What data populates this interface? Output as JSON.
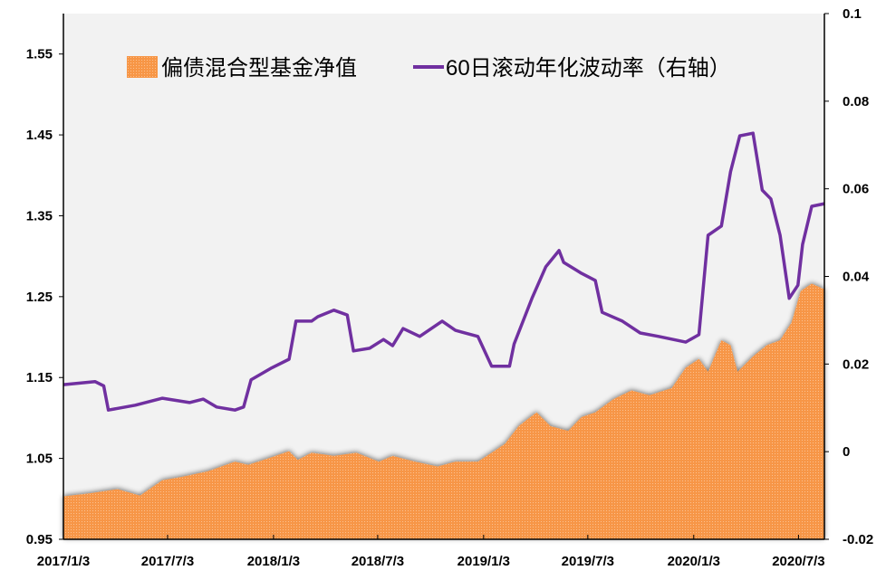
{
  "chart_data": {
    "type": "area+line",
    "title": "",
    "xlabel": "",
    "ylabel": "",
    "y2label": "",
    "xlim": [
      "2017-01-03",
      "2020-08-17"
    ],
    "ylim": [
      0.95,
      1.6
    ],
    "y2lim": [
      -0.02,
      0.1
    ],
    "grid": false,
    "legend_placement": "top",
    "x_ticks": [
      "2017/1/3",
      "2017/7/3",
      "2018/1/3",
      "2018/7/3",
      "2019/1/3",
      "2019/7/3",
      "2020/1/3",
      "2020/7/3"
    ],
    "x_tick_dates": [
      "2017-01-03",
      "2017-07-03",
      "2018-01-03",
      "2018-07-03",
      "2019-01-03",
      "2019-07-03",
      "2020-01-03",
      "2020-07-03"
    ],
    "y_ticks": [
      "0.95",
      "1.05",
      "1.15",
      "1.25",
      "1.35",
      "1.45",
      "1.55"
    ],
    "y2_ticks": [
      "-0.02",
      "0",
      "0.02",
      "0.04",
      "0.06",
      "0.08",
      "0.1"
    ],
    "colors": {
      "area": "#f79646",
      "line": "#7030a0",
      "plot_bg": "#f2f2f2"
    },
    "series": [
      {
        "name": "偏债混合型基金净值",
        "type": "area",
        "axis": "left",
        "points": [
          [
            "2017-01-03",
            1.003
          ],
          [
            "2017-02-19",
            1.007
          ],
          [
            "2017-04-07",
            1.012
          ],
          [
            "2017-05-16",
            1.004
          ],
          [
            "2017-06-24",
            1.023
          ],
          [
            "2017-07-26",
            1.027
          ],
          [
            "2017-09-11",
            1.034
          ],
          [
            "2017-10-28",
            1.046
          ],
          [
            "2017-11-20",
            1.042
          ],
          [
            "2017-12-29",
            1.051
          ],
          [
            "2018-01-30",
            1.059
          ],
          [
            "2018-02-14",
            1.048
          ],
          [
            "2018-03-10",
            1.057
          ],
          [
            "2018-04-18",
            1.053
          ],
          [
            "2018-05-27",
            1.057
          ],
          [
            "2018-07-05",
            1.046
          ],
          [
            "2018-07-29",
            1.053
          ],
          [
            "2018-09-06",
            1.046
          ],
          [
            "2018-10-15",
            1.04
          ],
          [
            "2018-11-15",
            1.046
          ],
          [
            "2018-12-24",
            1.046
          ],
          [
            "2019-01-17",
            1.057
          ],
          [
            "2019-02-09",
            1.068
          ],
          [
            "2019-03-05",
            1.09
          ],
          [
            "2019-04-05",
            1.107
          ],
          [
            "2019-04-29",
            1.09
          ],
          [
            "2019-05-30",
            1.084
          ],
          [
            "2019-06-22",
            1.101
          ],
          [
            "2019-07-16",
            1.107
          ],
          [
            "2019-08-16",
            1.123
          ],
          [
            "2019-09-17",
            1.134
          ],
          [
            "2019-10-18",
            1.128
          ],
          [
            "2019-11-26",
            1.137
          ],
          [
            "2019-12-20",
            1.162
          ],
          [
            "2020-01-12",
            1.173
          ],
          [
            "2020-01-28",
            1.157
          ],
          [
            "2020-02-20",
            1.196
          ],
          [
            "2020-03-07",
            1.19
          ],
          [
            "2020-03-19",
            1.157
          ],
          [
            "2020-04-15",
            1.176
          ],
          [
            "2020-05-09",
            1.19
          ],
          [
            "2020-06-01",
            1.196
          ],
          [
            "2020-06-21",
            1.218
          ],
          [
            "2020-07-07",
            1.257
          ],
          [
            "2020-07-26",
            1.266
          ],
          [
            "2020-08-17",
            1.259
          ]
        ]
      },
      {
        "name": "60日滚动年化波动率（右轴）",
        "type": "line",
        "axis": "right",
        "points": [
          [
            "2017-01-03",
            0.0153
          ],
          [
            "2017-02-27",
            0.016
          ],
          [
            "2017-03-14",
            0.015
          ],
          [
            "2017-03-22",
            0.0095
          ],
          [
            "2017-05-08",
            0.0106
          ],
          [
            "2017-06-24",
            0.0122
          ],
          [
            "2017-08-10",
            0.0112
          ],
          [
            "2017-09-03",
            0.012
          ],
          [
            "2017-09-26",
            0.0102
          ],
          [
            "2017-10-28",
            0.0095
          ],
          [
            "2017-11-12",
            0.0102
          ],
          [
            "2017-11-25",
            0.0164
          ],
          [
            "2017-12-29",
            0.019
          ],
          [
            "2018-01-30",
            0.0211
          ],
          [
            "2018-02-11",
            0.0298
          ],
          [
            "2018-03-10",
            0.0298
          ],
          [
            "2018-03-21",
            0.0308
          ],
          [
            "2018-04-18",
            0.0323
          ],
          [
            "2018-05-11",
            0.0312
          ],
          [
            "2018-05-22",
            0.023
          ],
          [
            "2018-06-19",
            0.0236
          ],
          [
            "2018-07-13",
            0.0256
          ],
          [
            "2018-07-29",
            0.0242
          ],
          [
            "2018-08-16",
            0.0281
          ],
          [
            "2018-09-14",
            0.0263
          ],
          [
            "2018-10-23",
            0.0298
          ],
          [
            "2018-11-15",
            0.0277
          ],
          [
            "2018-12-24",
            0.0263
          ],
          [
            "2019-01-17",
            0.0195
          ],
          [
            "2019-02-17",
            0.0195
          ],
          [
            "2019-02-25",
            0.0246
          ],
          [
            "2019-03-28",
            0.035
          ],
          [
            "2019-04-21",
            0.0422
          ],
          [
            "2019-05-14",
            0.0459
          ],
          [
            "2019-05-22",
            0.0432
          ],
          [
            "2019-06-22",
            0.0407
          ],
          [
            "2019-07-16",
            0.0391
          ],
          [
            "2019-07-28",
            0.0318
          ],
          [
            "2019-09-01",
            0.0298
          ],
          [
            "2019-10-02",
            0.0271
          ],
          [
            "2019-11-03",
            0.0263
          ],
          [
            "2019-12-20",
            0.025
          ],
          [
            "2020-01-12",
            0.0267
          ],
          [
            "2020-01-28",
            0.0494
          ],
          [
            "2020-02-20",
            0.0515
          ],
          [
            "2020-03-07",
            0.0639
          ],
          [
            "2020-03-23",
            0.0721
          ],
          [
            "2020-04-15",
            0.0727
          ],
          [
            "2020-05-01",
            0.0597
          ],
          [
            "2020-05-16",
            0.0577
          ],
          [
            "2020-06-01",
            0.0494
          ],
          [
            "2020-06-17",
            0.035
          ],
          [
            "2020-07-02",
            0.038
          ],
          [
            "2020-07-10",
            0.0473
          ],
          [
            "2020-07-26",
            0.056
          ],
          [
            "2020-08-17",
            0.0566
          ]
        ]
      }
    ]
  }
}
